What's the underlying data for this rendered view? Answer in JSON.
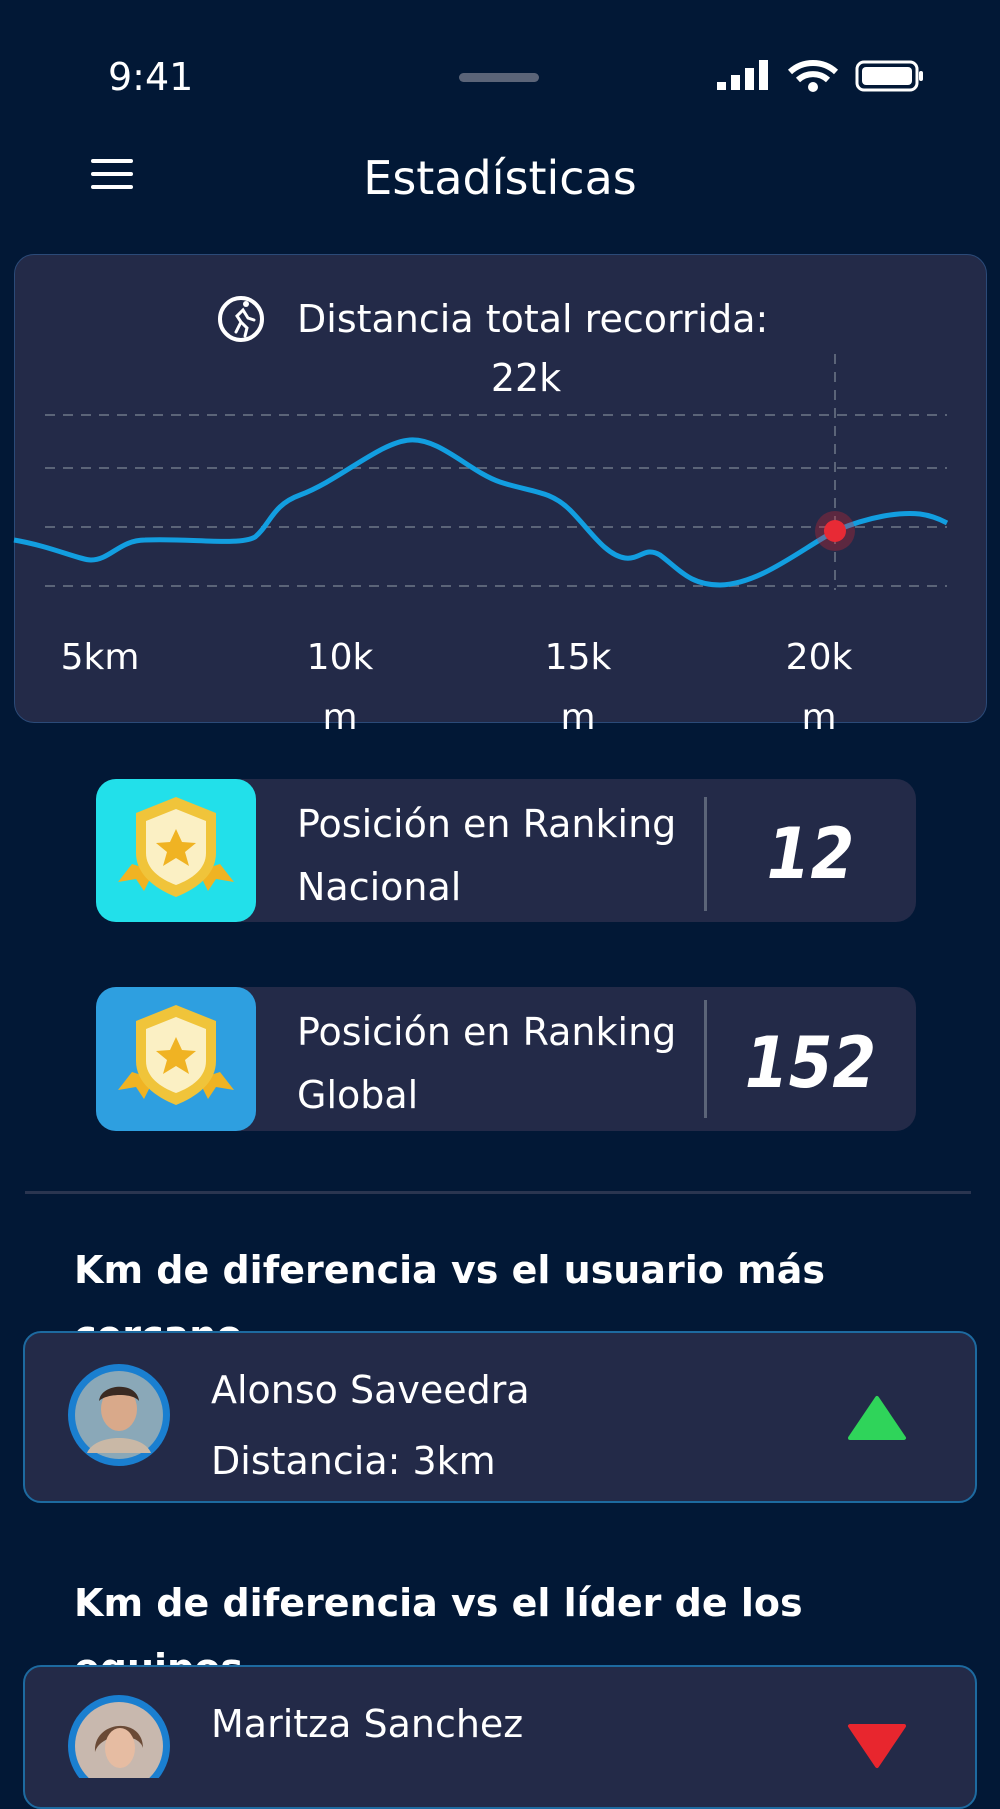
{
  "status_bar": {
    "time": "9:41"
  },
  "header": {
    "title": "Estadísticas"
  },
  "distance_card": {
    "label": "Distancia total recorrida:",
    "value": "22k",
    "x_labels": [
      "5km",
      "10km",
      "15km",
      "20km"
    ]
  },
  "rankings": [
    {
      "label": "Posición en Ranking Nacional",
      "value": 12
    },
    {
      "label": "Posición en Ranking Global",
      "value": 152
    }
  ],
  "comparisons": [
    {
      "heading": "Km de diferencia vs el usuario más cercano",
      "name": "Alonso Saveedra",
      "distance": "Distancia: 3km"
    },
    {
      "heading": "Km de diferencia vs el líder de los equipos",
      "name": "Maritza Sanchez"
    }
  ]
}
